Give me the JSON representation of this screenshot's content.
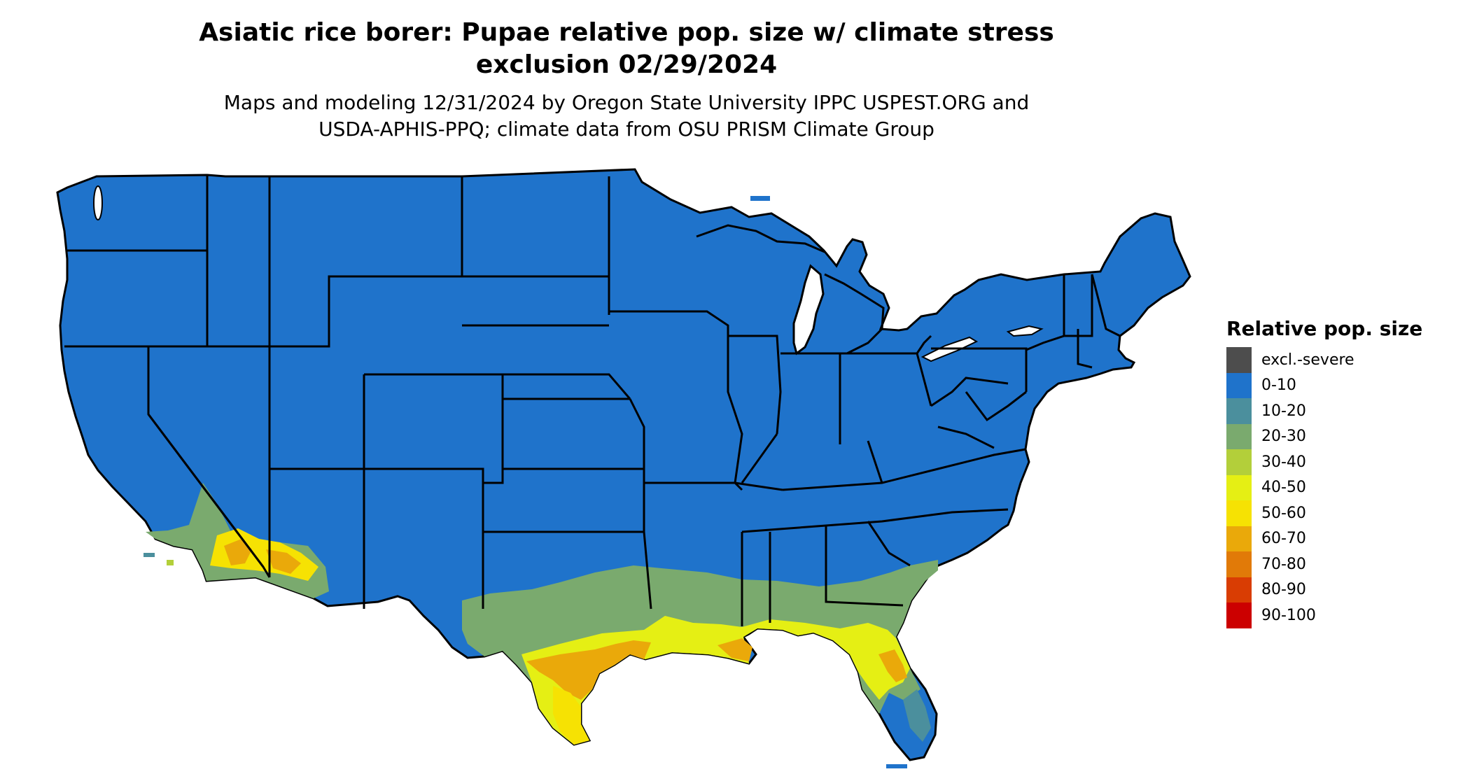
{
  "title": "Asiatic rice borer: Pupae relative pop. size w/ climate stress exclusion 02/29/2024",
  "title_line1": "Asiatic rice borer: Pupae relative pop. size w/ climate stress",
  "title_line2": "exclusion 02/29/2024",
  "subtitle_line1": "Maps and modeling 12/31/2024 by Oregon State University IPPC USPEST.ORG and",
  "subtitle_line2": "USDA-APHIS-PPQ; climate data from OSU PRISM Climate Group",
  "legend": {
    "title": "Relative pop. size",
    "items": [
      {
        "label": "excl.-severe",
        "color": "#4d4d4d"
      },
      {
        "label": "0-10",
        "color": "#1f73cb"
      },
      {
        "label": "10-20",
        "color": "#4b8f9d"
      },
      {
        "label": "20-30",
        "color": "#7aaa6e"
      },
      {
        "label": "30-40",
        "color": "#b3cf3a"
      },
      {
        "label": "40-50",
        "color": "#e5ef14"
      },
      {
        "label": "50-60",
        "color": "#f6e203"
      },
      {
        "label": "60-70",
        "color": "#eaa90a"
      },
      {
        "label": "70-80",
        "color": "#e17a08"
      },
      {
        "label": "80-90",
        "color": "#d93d03"
      },
      {
        "label": "90-100",
        "color": "#cc0000"
      }
    ]
  },
  "colors": {
    "base": "#1f73cb",
    "border": "#000000",
    "lake": "#ffffff"
  }
}
